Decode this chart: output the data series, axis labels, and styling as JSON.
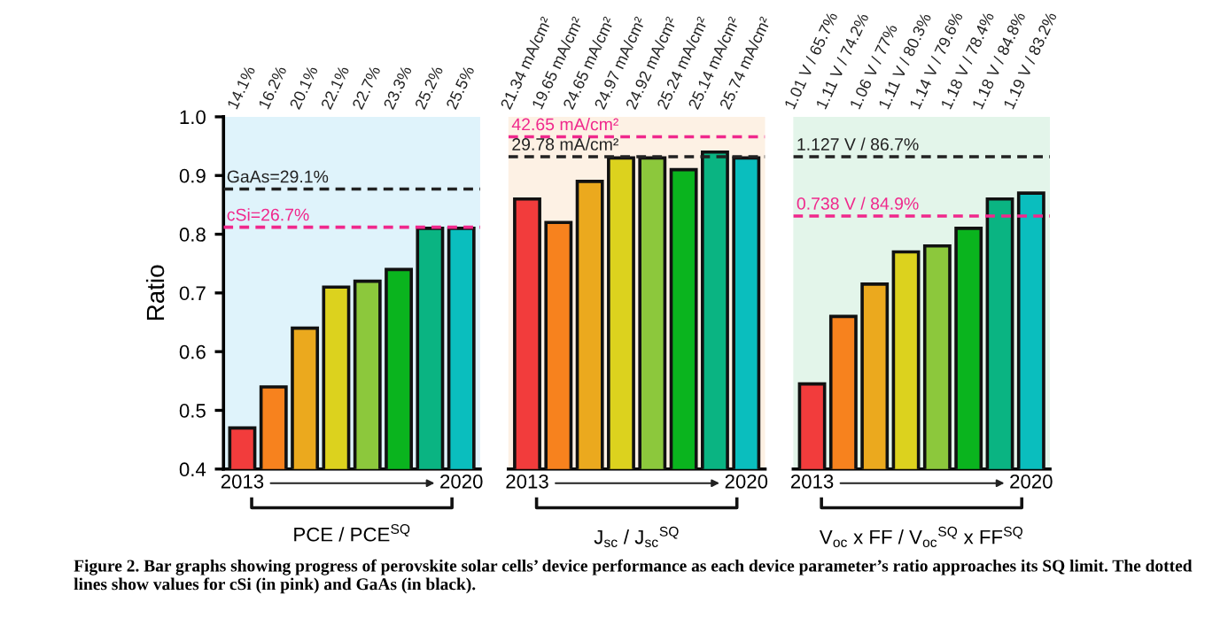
{
  "chart_data": [
    {
      "type": "bar",
      "categories": [
        "14.1%",
        "16.2%",
        "20.1%",
        "22.1%",
        "22.7%",
        "23.3%",
        "25.2%",
        "25.5%"
      ],
      "xlabel": "PCE / PCE$^{SQ}$",
      "ylabel": "Ratio",
      "ylim": [
        0.4,
        1.0
      ],
      "yticks": [
        0.4,
        0.5,
        0.6,
        0.7,
        0.8,
        0.9,
        {
          "value": 1.0,
          "label": "1.0"
        }
      ],
      "values": [
        0.47,
        0.54,
        0.64,
        0.71,
        0.72,
        0.74,
        0.81,
        0.81
      ],
      "colors": [
        "#f23c3c",
        "#f7821e",
        "#eba91e",
        "#dcd21e",
        "#8cc83c",
        "#0ab41e",
        "#0ab482",
        "#0abebe"
      ],
      "ref_lines": [
        {
          "axis": "y",
          "value": 0.877,
          "color": "#222222",
          "line_style": "dashed"
        },
        {
          "axis": "y",
          "value": 0.812,
          "color": "#f0288c",
          "line_style": "dashed"
        }
      ],
      "annotations": [
        {
          "text": "GaAs=29.1%",
          "y": 0.877
        },
        {
          "text": "cSi=26.7%",
          "y": 0.812
        },
        "2013",
        "2020",
        "Figure 2. Bar graphs showing progress of perovskite solar cells’ device performance as each device parameter’s ratio approaches its SQ limit. The dotted lines show values for cSi (in pink) and GaAs (in black)."
      ]
    },
    {
      "type": "bar",
      "categories": [
        "21.34 mA/cm²",
        "19.65 mA/cm²",
        "24.65 mA/cm²",
        "24.97 mA/cm²",
        "24.92 mA/cm²",
        "25.24 mA/cm²",
        "25.14 mA/cm²",
        "25.74 mA/cm²"
      ],
      "xlabel": "J$_{sc}$ / J$_{sc}$$^{SQ}$",
      "ylim": [
        0.4,
        1.0
      ],
      "tick_labels": "x",
      "values": [
        0.86,
        0.82,
        0.89,
        0.93,
        0.93,
        0.91,
        0.94,
        0.93
      ],
      "colors": [
        "#f23c3c",
        "#f7821e",
        "#eba91e",
        "#dcd21e",
        "#8cc83c",
        "#0ab41e",
        "#0ab482",
        "#0abebe"
      ],
      "ref_lines": [
        {
          "axis": "y",
          "value": 0.966,
          "color": "#f0288c",
          "line_style": "dashed"
        },
        {
          "axis": "y",
          "value": 0.932,
          "color": "#222222",
          "line_style": "dashed"
        }
      ],
      "annotations": [
        {
          "text": "42.65 mA/cm²",
          "y": 0.966
        },
        {
          "text": "29.78 mA/cm²",
          "y": 0.932
        },
        "2013",
        "2020"
      ]
    },
    {
      "type": "bar",
      "categories": [
        "1.01 V / 65.7%",
        "1.11 V / 74.2%",
        "1.06 V / 77%",
        "1.11 V / 80.3%",
        "1.14 V / 79.6%",
        "1.18 V / 78.4%",
        "1.18 V / 84.8%",
        "1.19 V / 83.2%"
      ],
      "xlabel": "V$_{oc}$ x FF / V$_{oc}$$^{SQ}$ x FF$^{SQ}$",
      "ylim": [
        0.4,
        1.0
      ],
      "tick_labels": "x",
      "values": [
        0.545,
        0.66,
        0.715,
        0.77,
        0.78,
        0.81,
        0.86,
        0.87
      ],
      "colors": [
        "#f23c3c",
        "#f7821e",
        "#eba91e",
        "#dcd21e",
        "#8cc83c",
        "#0ab41e",
        "#0ab482",
        "#0abebe"
      ],
      "ref_lines": [
        {
          "axis": "y",
          "value": 0.932,
          "color": "#222222",
          "line_style": "dashed"
        },
        {
          "axis": "y",
          "value": 0.831,
          "color": "#f0288c",
          "line_style": "dashed"
        }
      ],
      "annotations": [
        {
          "text": "1.127 V / 86.7%",
          "y": 0.932
        },
        {
          "text": "0.738 V / 84.9%",
          "y": 0.831
        },
        "2013",
        "2020"
      ]
    }
  ]
}
